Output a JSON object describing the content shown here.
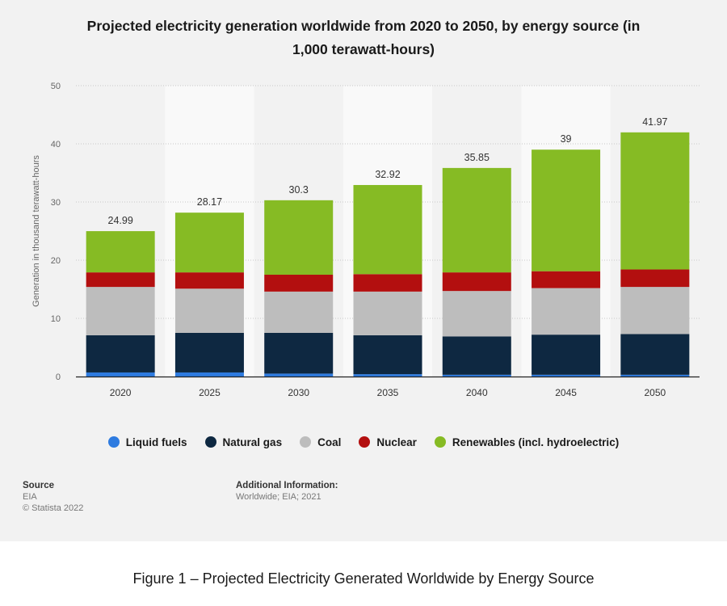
{
  "chart_data": {
    "type": "bar",
    "stacked": true,
    "title": "Projected electricity generation worldwide from 2020 to 2050, by energy source (in 1,000 terawatt-hours)",
    "title_lines": [
      "Projected electricity generation worldwide from 2020 to 2050, by energy source (in",
      "1,000 terawatt-hours)"
    ],
    "ylabel": "Generation in thousand terawatt-hours",
    "ylim": [
      0,
      50
    ],
    "yticks": [
      0,
      10,
      20,
      30,
      40,
      50
    ],
    "grid": true,
    "legend_position": "bottom",
    "categories": [
      "2020",
      "2025",
      "2030",
      "2035",
      "2040",
      "2045",
      "2050"
    ],
    "totals": [
      24.99,
      28.17,
      30.3,
      32.92,
      35.85,
      39,
      41.97
    ],
    "total_labels": [
      "24.99",
      "28.17",
      "30.3",
      "32.92",
      "35.85",
      "39",
      "41.97"
    ],
    "series": [
      {
        "name": "Liquid fuels",
        "color": "#2e7be0",
        "values": [
          0.7,
          0.7,
          0.5,
          0.4,
          0.3,
          0.3,
          0.3
        ]
      },
      {
        "name": "Natural gas",
        "color": "#0e2841",
        "values": [
          6.4,
          6.8,
          7.0,
          6.7,
          6.6,
          6.9,
          7.0
        ]
      },
      {
        "name": "Coal",
        "color": "#bdbdbd",
        "values": [
          8.3,
          7.6,
          7.1,
          7.5,
          7.8,
          8.0,
          8.1
        ]
      },
      {
        "name": "Nuclear",
        "color": "#b30f0f",
        "values": [
          2.5,
          2.8,
          2.9,
          3.0,
          3.2,
          2.9,
          3.0
        ]
      },
      {
        "name": "Renewables (incl. hydroelectric)",
        "color": "#86bb24",
        "values": [
          7.09,
          10.27,
          12.8,
          15.32,
          17.95,
          20.9,
          23.57
        ]
      }
    ]
  },
  "source": {
    "title": "Source",
    "lines": [
      "EIA",
      "© Statista 2022"
    ]
  },
  "additional_info": {
    "title": "Additional Information:",
    "text": "Worldwide; EIA; 2021"
  },
  "caption": "Figure 1 – Projected Electricity Generated Worldwide by Energy Source"
}
